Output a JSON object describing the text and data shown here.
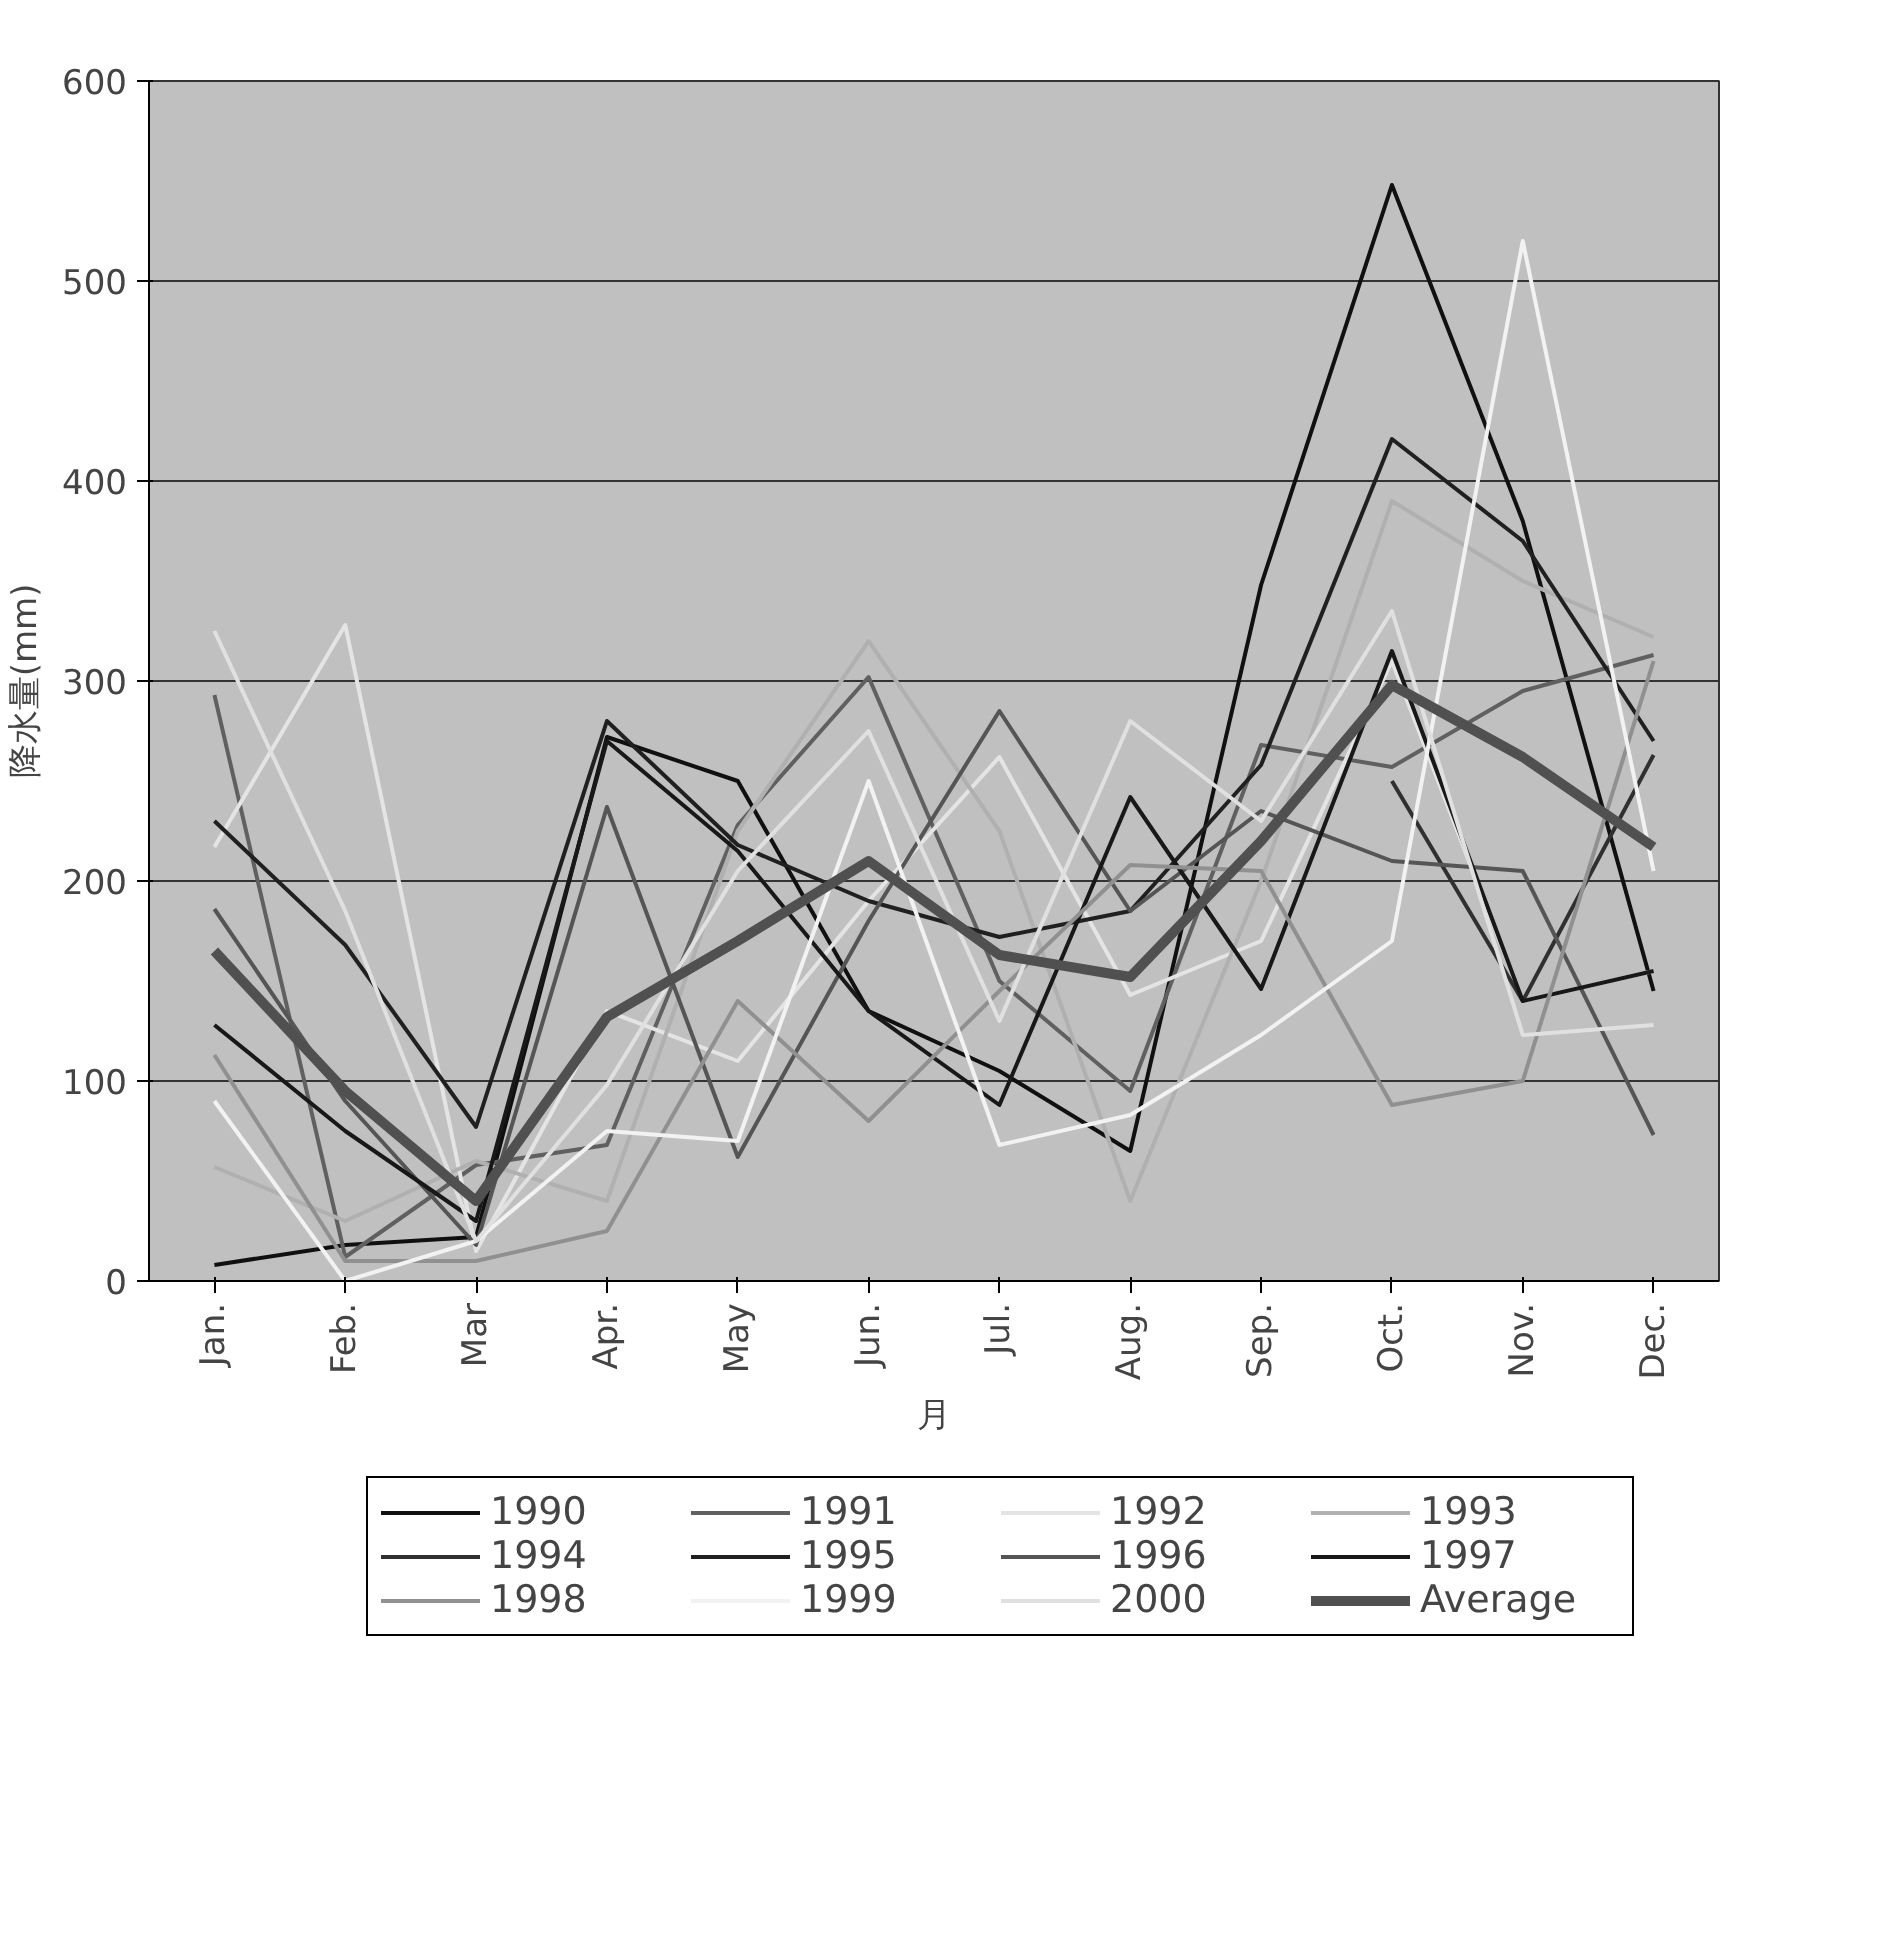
{
  "chart_data": {
    "type": "line",
    "xlabel": "月",
    "ylabel": "降水量(mm)",
    "categories": [
      "Jan.",
      "Feb.",
      "Mar",
      "Apr.",
      "May",
      "Jun.",
      "Jul.",
      "Aug.",
      "Sep.",
      "Oct.",
      "Nov.",
      "Dec."
    ],
    "ylim": [
      0,
      600
    ],
    "yticks": [
      0,
      100,
      200,
      300,
      400,
      500,
      600
    ],
    "grid": "y",
    "legend": "bottom",
    "line_style": "solid",
    "marker": "none",
    "series": [
      {
        "name": "1990",
        "color": "#101010",
        "values": [
          8,
          18,
          22,
          272,
          250,
          135,
          105,
          65,
          348,
          548,
          380,
          145
        ]
      },
      {
        "name": "1991",
        "color": "#606060",
        "values": [
          293,
          12,
          58,
          68,
          228,
          302,
          150,
          95,
          268,
          257,
          295,
          313
        ]
      },
      {
        "name": "1992",
        "color": "#e4e4e4",
        "values": [
          217,
          328,
          15,
          135,
          110,
          190,
          262,
          143,
          170,
          310,
          140,
          155
        ]
      },
      {
        "name": "1993",
        "color": "#b0b0b0",
        "values": [
          57,
          30,
          60,
          40,
          225,
          320,
          225,
          40,
          200,
          390,
          350,
          322
        ]
      },
      {
        "name": "1994",
        "color": "#303030",
        "values": [
          null,
          null,
          null,
          null,
          null,
          null,
          null,
          null,
          null,
          250,
          140,
          263
        ]
      },
      {
        "name": "1995",
        "color": "#202020",
        "values": [
          230,
          168,
          77,
          280,
          218,
          190,
          172,
          185,
          258,
          421,
          370,
          270
        ]
      },
      {
        "name": "1996",
        "color": "#555555",
        "values": [
          186,
          90,
          18,
          237,
          62,
          180,
          285,
          185,
          235,
          210,
          205,
          73
        ]
      },
      {
        "name": "1997",
        "color": "#181818",
        "values": [
          128,
          75,
          30,
          270,
          215,
          135,
          88,
          242,
          146,
          315,
          140,
          155
        ]
      },
      {
        "name": "1998",
        "color": "#909090",
        "values": [
          113,
          10,
          10,
          25,
          140,
          80,
          145,
          208,
          205,
          88,
          100,
          310
        ]
      },
      {
        "name": "1999",
        "color": "#f2f2f2",
        "values": [
          90,
          0,
          20,
          75,
          70,
          250,
          68,
          83,
          123,
          170,
          520,
          205
        ]
      },
      {
        "name": "2000",
        "color": "#e0e0e0",
        "values": [
          325,
          185,
          20,
          98,
          205,
          275,
          130,
          280,
          230,
          335,
          123,
          128
        ]
      },
      {
        "name": "Average",
        "color": "#505050",
        "values": [
          165,
          95,
          40,
          132,
          170,
          210,
          163,
          152,
          220,
          298,
          262,
          217
        ]
      }
    ]
  }
}
